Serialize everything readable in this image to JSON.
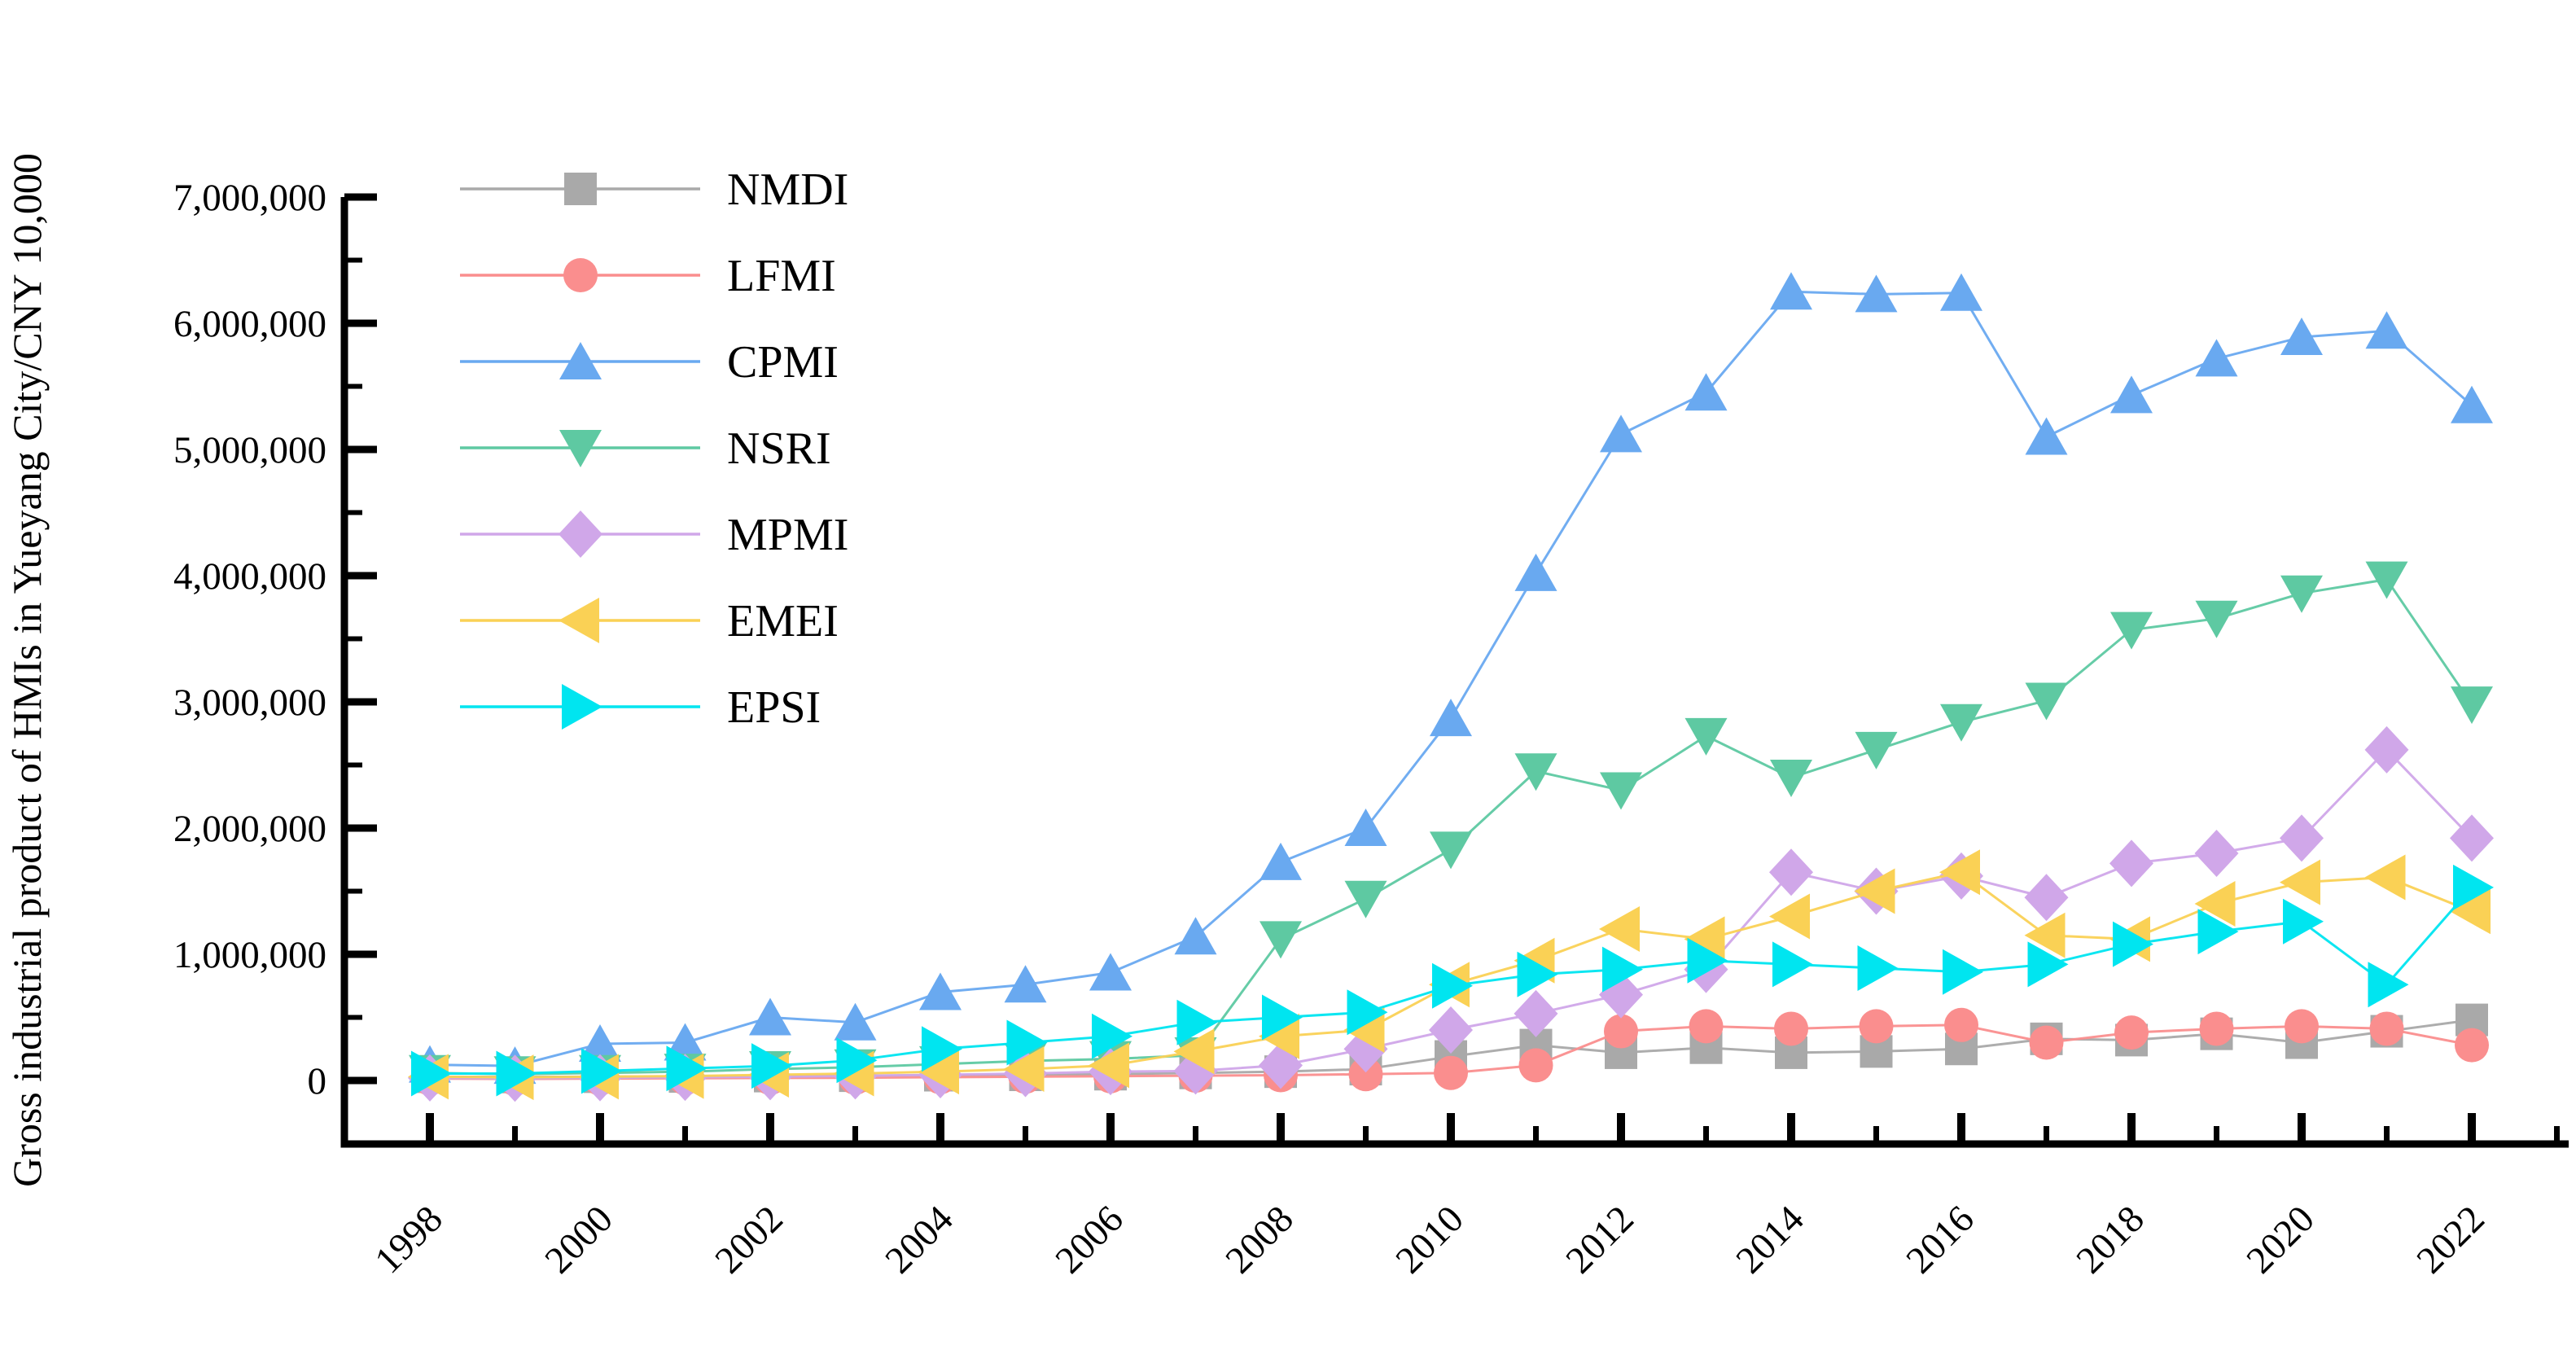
{
  "chart_data": {
    "type": "line",
    "title": "",
    "xlabel": "",
    "ylabel": "Gross industrial product of HMIs in Yueyang City/CNY 10,000",
    "x": [
      1998,
      1999,
      2000,
      2001,
      2002,
      2003,
      2004,
      2005,
      2006,
      2007,
      2008,
      2009,
      2010,
      2011,
      2012,
      2013,
      2014,
      2015,
      2016,
      2017,
      2018,
      2019,
      2020,
      2021,
      2022
    ],
    "x_tick_labels": [
      "1998",
      "2000",
      "2002",
      "2004",
      "2006",
      "2008",
      "2010",
      "2012",
      "2014",
      "2016",
      "2018",
      "2020",
      "2022"
    ],
    "ylim": [
      0,
      7000000
    ],
    "y_ticks": [
      0,
      1000000,
      2000000,
      3000000,
      4000000,
      5000000,
      6000000,
      7000000
    ],
    "y_minor_step": 500000,
    "grid": false,
    "legend_position": "upper-left",
    "background_color": "#ffffff",
    "axis_color": "#000000",
    "series": [
      {
        "name": "NMDI",
        "marker": "square",
        "color": "#a9a9a9",
        "values": [
          30000,
          28000,
          30000,
          32000,
          35000,
          38000,
          42000,
          45000,
          50000,
          60000,
          70000,
          90000,
          190000,
          280000,
          220000,
          260000,
          220000,
          230000,
          250000,
          330000,
          320000,
          370000,
          300000,
          390000,
          480000
        ]
      },
      {
        "name": "LFMI",
        "marker": "circle",
        "color": "#fa8e8e",
        "values": [
          15000,
          12000,
          15000,
          18000,
          20000,
          22000,
          26000,
          30000,
          34000,
          38000,
          42000,
          50000,
          60000,
          120000,
          390000,
          430000,
          410000,
          430000,
          440000,
          300000,
          380000,
          410000,
          430000,
          410000,
          280000
        ]
      },
      {
        "name": "CPMI",
        "marker": "triangle-up",
        "color": "#69a9f0",
        "values": [
          125000,
          115000,
          290000,
          300000,
          500000,
          460000,
          700000,
          760000,
          855000,
          1140000,
          1730000,
          2000000,
          2870000,
          4020000,
          5120000,
          5450000,
          6250000,
          6230000,
          6240000,
          5100000,
          5430000,
          5720000,
          5890000,
          5940000,
          5350000
        ]
      },
      {
        "name": "NSRI",
        "marker": "triangle-down",
        "color": "#5ec9a2",
        "values": [
          60000,
          50000,
          60000,
          70000,
          90000,
          105000,
          130000,
          155000,
          170000,
          200000,
          1120000,
          1440000,
          1830000,
          2450000,
          2300000,
          2730000,
          2400000,
          2620000,
          2840000,
          3010000,
          3570000,
          3660000,
          3860000,
          3970000,
          2980000
        ]
      },
      {
        "name": "MPMI",
        "marker": "diamond",
        "color": "#d0a7e9",
        "values": [
          20000,
          18000,
          22000,
          25000,
          30000,
          36000,
          45000,
          55000,
          70000,
          75000,
          120000,
          250000,
          400000,
          530000,
          680000,
          880000,
          1650000,
          1500000,
          1620000,
          1450000,
          1720000,
          1800000,
          1920000,
          2620000,
          1920000
        ]
      },
      {
        "name": "EMEI",
        "marker": "triangle-left",
        "color": "#fad155",
        "values": [
          30000,
          25000,
          30000,
          35000,
          45000,
          55000,
          70000,
          90000,
          120000,
          230000,
          350000,
          400000,
          760000,
          950000,
          1200000,
          1120000,
          1300000,
          1500000,
          1650000,
          1150000,
          1120000,
          1400000,
          1570000,
          1610000,
          1340000
        ]
      },
      {
        "name": "EPSI",
        "marker": "triangle-right",
        "color": "#00e5f0",
        "values": [
          55000,
          55000,
          75000,
          95000,
          115000,
          160000,
          250000,
          300000,
          350000,
          460000,
          500000,
          540000,
          750000,
          840000,
          880000,
          950000,
          920000,
          890000,
          860000,
          920000,
          1080000,
          1180000,
          1260000,
          760000,
          1530000
        ]
      }
    ]
  }
}
